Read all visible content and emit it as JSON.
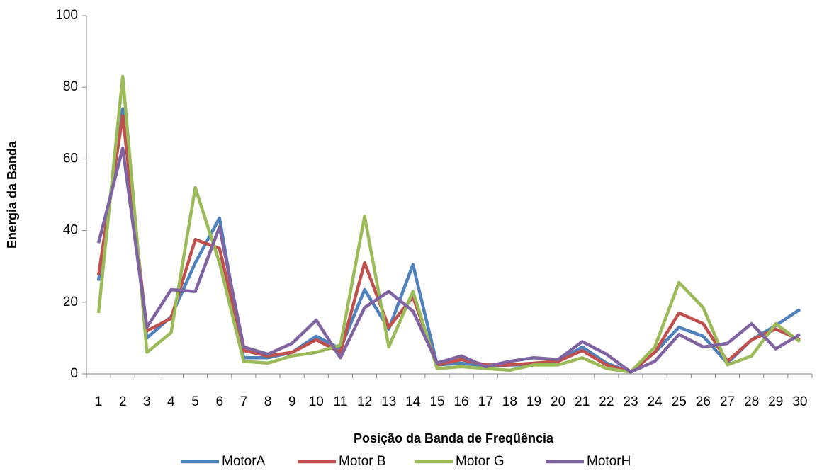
{
  "chart_data": {
    "type": "line",
    "x_label": "Posição da Banda de Freqüência",
    "y_label": "Energia da Banda",
    "categories": [
      "1",
      "2",
      "3",
      "4",
      "5",
      "6",
      "7",
      "8",
      "9",
      "10",
      "11",
      "12",
      "13",
      "14",
      "15",
      "16",
      "17",
      "18",
      "19",
      "20",
      "21",
      "22",
      "23",
      "24",
      "25",
      "26",
      "27",
      "28",
      "29",
      "30"
    ],
    "series": [
      {
        "name": "MotorA",
        "color": "#4f81bd",
        "values": [
          26,
          74,
          10,
          16,
          31,
          43.5,
          4.5,
          4.5,
          6,
          10.5,
          7,
          23.5,
          12.5,
          30.5,
          2.5,
          3,
          2,
          2.5,
          2.5,
          3.5,
          7.5,
          3,
          0.5,
          6,
          13,
          10.5,
          3,
          9.5,
          13.5,
          18
        ]
      },
      {
        "name": "Motor B",
        "color": "#c0504d",
        "values": [
          27.5,
          72,
          12,
          15.5,
          37.5,
          35,
          6.5,
          5,
          6,
          9.5,
          6,
          31,
          13,
          21.5,
          2.5,
          4,
          2.5,
          2.5,
          3,
          3.5,
          6.5,
          2.5,
          0.5,
          6,
          17,
          14,
          3.5,
          9.5,
          12.5,
          9.5
        ]
      },
      {
        "name": "Motor G",
        "color": "#9bbb59",
        "values": [
          17,
          83,
          6,
          11.5,
          52,
          31,
          3.5,
          3,
          5,
          6,
          8,
          44,
          7.5,
          23,
          1.5,
          2,
          1.5,
          1,
          2.5,
          2.5,
          4.5,
          1.5,
          0.5,
          7.5,
          25.5,
          18.5,
          2.5,
          5,
          14,
          9
        ]
      },
      {
        "name": "MotorH",
        "color": "#8064a2",
        "values": [
          36.5,
          63,
          13,
          23.5,
          23,
          41,
          7.5,
          5.5,
          8.5,
          15,
          4.5,
          18.5,
          23,
          17.5,
          3,
          5,
          2,
          3.5,
          4.5,
          4,
          9,
          5.5,
          0.5,
          3.5,
          11,
          7.5,
          8.5,
          14,
          7,
          11
        ]
      }
    ],
    "ylim": [
      0,
      100
    ],
    "yticks": [
      0,
      20,
      40,
      60,
      80,
      100
    ],
    "grid": false,
    "legend": "bottom"
  }
}
